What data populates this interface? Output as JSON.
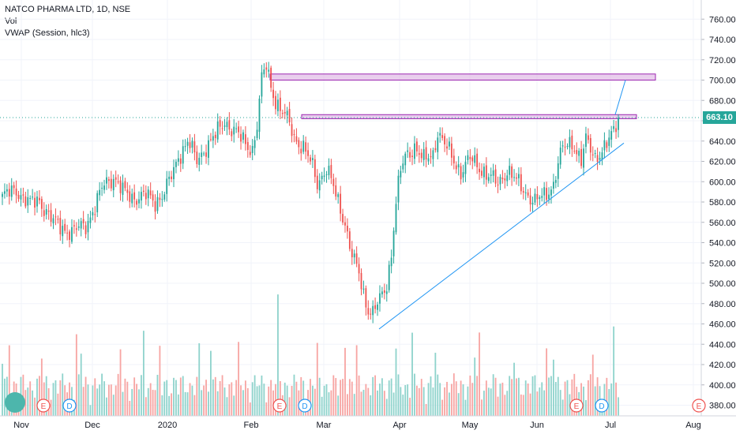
{
  "legend": {
    "symbol": "NATCO PHARMA LTD, 1D, NSE",
    "volume": "Vol",
    "vwap": "VWAP (Session, hlc3)"
  },
  "last_price_label": "663.10",
  "colors": {
    "up": "#26a69a",
    "down": "#ef5350",
    "vol_up": "#8fd3cc",
    "vol_down": "#f7a5a3",
    "trendline": "#2196f3",
    "zone_fill": "#e1bee7",
    "zone_border": "#9c27b0",
    "grid": "#f0f3fa"
  },
  "chart_data": {
    "type": "candlestick",
    "y_axis": {
      "ticks": [
        "760.00",
        "740.00",
        "720.00",
        "700.00",
        "680.00",
        "660.00",
        "640.00",
        "620.00",
        "600.00",
        "580.00",
        "560.00",
        "540.00",
        "520.00",
        "500.00",
        "480.00",
        "460.00",
        "440.00",
        "420.00",
        "400.00",
        "380.00"
      ],
      "ylim": [
        368,
        770
      ],
      "position": "right"
    },
    "x_axis": {
      "ticks": [
        "Nov",
        "Dec",
        "2020",
        "Feb",
        "Mar",
        "Apr",
        "May",
        "Jun",
        "Jul",
        "Aug"
      ]
    },
    "last_price": 663.1,
    "resistance_zones": [
      {
        "low": 700,
        "high": 706
      },
      {
        "low": 662,
        "high": 666
      }
    ],
    "trendline": {
      "from_price": 455,
      "to_price": 638
    },
    "projection": {
      "from_price": 666,
      "to_price": 700
    },
    "event_markers": [
      "E",
      "D",
      "E",
      "D",
      "E",
      "D",
      "E"
    ],
    "waypoints": [
      [
        0,
        585
      ],
      [
        6,
        592
      ],
      [
        12,
        578
      ],
      [
        16,
        582
      ],
      [
        22,
        560
      ],
      [
        30,
        550
      ],
      [
        36,
        558
      ],
      [
        40,
        575
      ],
      [
        44,
        598
      ],
      [
        48,
        605
      ],
      [
        52,
        590
      ],
      [
        56,
        585
      ],
      [
        62,
        586
      ],
      [
        66,
        580
      ],
      [
        70,
        590
      ],
      [
        74,
        610
      ],
      [
        76,
        625
      ],
      [
        80,
        640
      ],
      [
        84,
        620
      ],
      [
        88,
        635
      ],
      [
        92,
        645
      ],
      [
        96,
        660
      ],
      [
        100,
        650
      ],
      [
        104,
        640
      ],
      [
        108,
        632
      ],
      [
        110,
        655
      ],
      [
        112,
        700
      ],
      [
        114,
        715
      ],
      [
        116,
        695
      ],
      [
        118,
        680
      ],
      [
        120,
        670
      ],
      [
        124,
        658
      ],
      [
        126,
        645
      ],
      [
        130,
        632
      ],
      [
        134,
        615
      ],
      [
        136,
        600
      ],
      [
        140,
        612
      ],
      [
        144,
        588
      ],
      [
        148,
        560
      ],
      [
        150,
        535
      ],
      [
        152,
        520
      ],
      [
        154,
        510
      ],
      [
        156,
        490
      ],
      [
        158,
        475
      ],
      [
        160,
        470
      ],
      [
        164,
        488
      ],
      [
        166,
        500
      ],
      [
        168,
        530
      ],
      [
        170,
        580
      ],
      [
        172,
        610
      ],
      [
        174,
        625
      ],
      [
        178,
        635
      ],
      [
        182,
        620
      ],
      [
        186,
        628
      ],
      [
        188,
        650
      ],
      [
        190,
        640
      ],
      [
        194,
        625
      ],
      [
        198,
        610
      ],
      [
        202,
        622
      ],
      [
        206,
        615
      ],
      [
        210,
        605
      ],
      [
        214,
        598
      ],
      [
        218,
        612
      ],
      [
        222,
        600
      ],
      [
        226,
        590
      ],
      [
        230,
        580
      ],
      [
        234,
        586
      ],
      [
        238,
        598
      ],
      [
        240,
        618
      ],
      [
        242,
        632
      ],
      [
        246,
        640
      ],
      [
        250,
        620
      ],
      [
        252,
        640
      ],
      [
        256,
        625
      ],
      [
        260,
        632
      ],
      [
        262,
        640
      ],
      [
        264,
        650
      ],
      [
        266,
        663
      ]
    ]
  }
}
